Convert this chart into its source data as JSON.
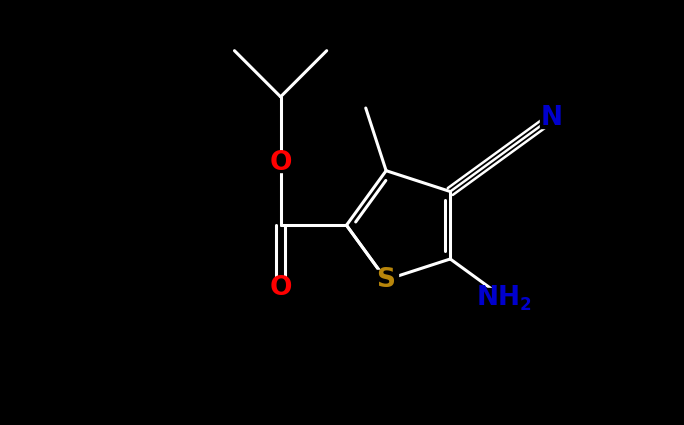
{
  "background_color": "#000000",
  "figsize": [
    6.84,
    4.25
  ],
  "dpi": 100,
  "bond_color": "#ffffff",
  "bond_width": 2.2,
  "atom_colors": {
    "O": "#ff0000",
    "S": "#b8860b",
    "N": "#0000cd",
    "NH2": "#0000cd",
    "C": "#ffffff"
  },
  "fontsize_main": 19,
  "fontsize_sub": 12
}
